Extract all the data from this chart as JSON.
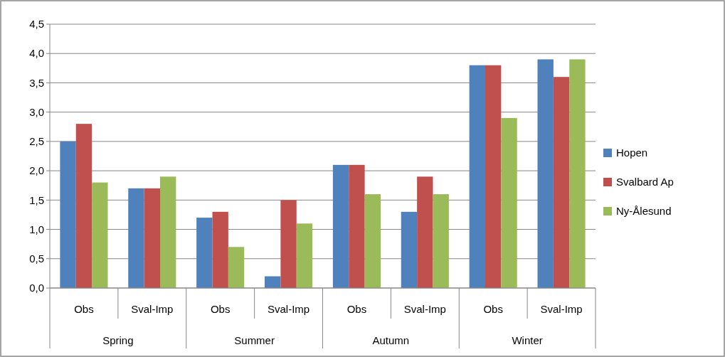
{
  "chart_data": {
    "type": "bar",
    "categories": [
      "Obs",
      "Sval-Imp",
      "Obs",
      "Sval-Imp",
      "Obs",
      "Sval-Imp",
      "Obs",
      "Sval-Imp"
    ],
    "series": [
      {
        "name": "Hopen",
        "color": "#4f81bd",
        "values": [
          2.5,
          1.7,
          1.2,
          0.2,
          2.1,
          1.3,
          3.8,
          3.9
        ]
      },
      {
        "name": "Svalbard Ap",
        "color": "#c0504d",
        "values": [
          2.8,
          1.7,
          1.3,
          1.5,
          2.1,
          1.9,
          3.8,
          3.6
        ]
      },
      {
        "name": "Ny-Ålesund",
        "color": "#9bbb59",
        "values": [
          1.8,
          1.9,
          0.7,
          1.1,
          1.6,
          1.6,
          2.9,
          3.9
        ]
      }
    ],
    "annotations": [
      "Spring",
      "Summer",
      "Autumn",
      "Winter"
    ],
    "ylim": [
      0,
      4.5
    ],
    "yticks": [
      {
        "value": 0,
        "label": "0,0"
      },
      {
        "value": 0.5,
        "label": "0,5"
      },
      {
        "value": 1,
        "label": "1,0"
      },
      {
        "value": 1.5,
        "label": "1,5"
      },
      {
        "value": 2,
        "label": "2,0"
      },
      {
        "value": 2.5,
        "label": "2,5"
      },
      {
        "value": 3,
        "label": "3,0"
      },
      {
        "value": 3.5,
        "label": "3,5"
      },
      {
        "value": 4,
        "label": "4,0"
      },
      {
        "value": 4.5,
        "label": "4,5"
      }
    ],
    "grid": "y",
    "legend": "right"
  }
}
